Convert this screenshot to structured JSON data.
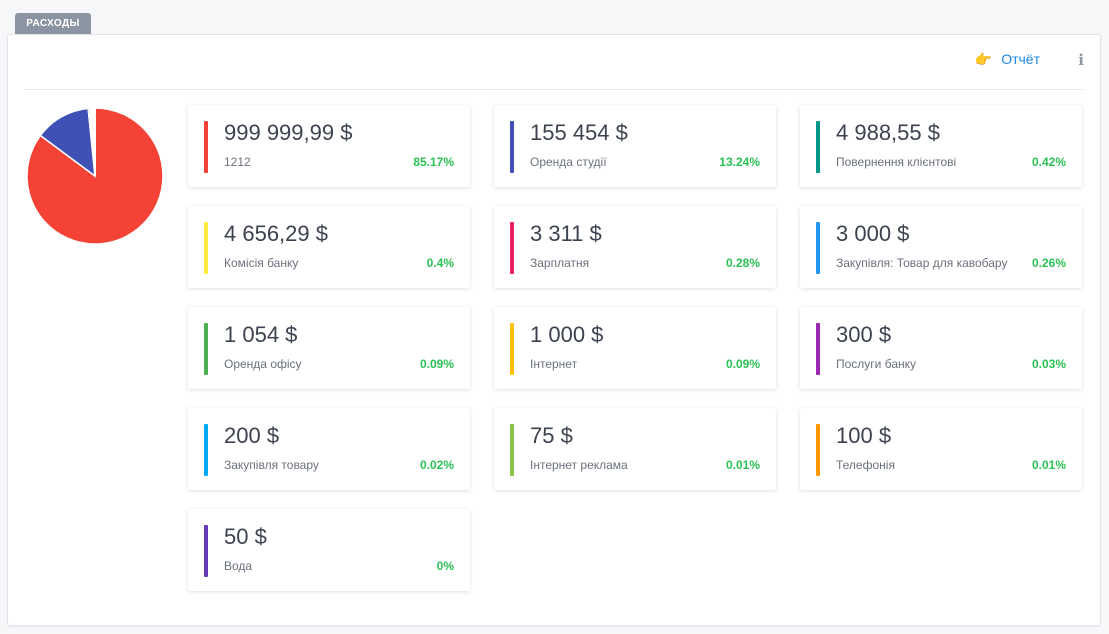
{
  "tab": {
    "label": "РАСХОДЫ"
  },
  "header": {
    "report_label": "Отчёт",
    "report_icon": "pointing-hand-icon",
    "info_icon": "info-icon"
  },
  "colors": {
    "accent": "#1e88e5",
    "positive": "#2bc155",
    "tab": "#8a94a2"
  },
  "chart_data": {
    "type": "pie",
    "slices": [
      {
        "label": "1212",
        "value": 85.17,
        "color": "#f44336"
      },
      {
        "label": "Оренда студії",
        "value": 13.24,
        "color": "#3f51b5"
      },
      {
        "label": "Повернення клієнтові",
        "value": 0.42,
        "color": "#009688"
      },
      {
        "label": "Комісія банку",
        "value": 0.4,
        "color": "#ffeb3b"
      },
      {
        "label": "Зарплатня",
        "value": 0.28,
        "color": "#e91e63"
      },
      {
        "label": "Закупівля: Товар для кавобару",
        "value": 0.26,
        "color": "#2196f3"
      },
      {
        "label": "Оренда офісу",
        "value": 0.09,
        "color": "#4caf50"
      },
      {
        "label": "Інтернет",
        "value": 0.09,
        "color": "#ffc107"
      },
      {
        "label": "Послуги банку",
        "value": 0.03,
        "color": "#9c27b0"
      },
      {
        "label": "Закупівля товару",
        "value": 0.02,
        "color": "#03a9f4"
      },
      {
        "label": "Інтернет реклама",
        "value": 0.01,
        "color": "#8bc34a"
      },
      {
        "label": "Телефонія",
        "value": 0.01,
        "color": "#ff9800"
      },
      {
        "label": "Вода",
        "value": 0,
        "color": "#673ab7"
      }
    ]
  },
  "cards": [
    {
      "amount": "999 999,99 $",
      "label": "1212",
      "percent": "85.17%",
      "color": "#f44336"
    },
    {
      "amount": "155 454 $",
      "label": "Оренда студії",
      "percent": "13.24%",
      "color": "#3f51b5"
    },
    {
      "amount": "4 988,55 $",
      "label": "Повернення клієнтові",
      "percent": "0.42%",
      "color": "#009688"
    },
    {
      "amount": "4 656,29 $",
      "label": "Комісія банку",
      "percent": "0.4%",
      "color": "#ffeb3b"
    },
    {
      "amount": "3 311 $",
      "label": "Зарплатня",
      "percent": "0.28%",
      "color": "#e91e63"
    },
    {
      "amount": "3 000 $",
      "label": "Закупівля: Товар для кавобару",
      "percent": "0.26%",
      "color": "#2196f3"
    },
    {
      "amount": "1 054 $",
      "label": "Оренда офісу",
      "percent": "0.09%",
      "color": "#4caf50"
    },
    {
      "amount": "1 000 $",
      "label": "Інтернет",
      "percent": "0.09%",
      "color": "#ffc107"
    },
    {
      "amount": "300 $",
      "label": "Послуги банку",
      "percent": "0.03%",
      "color": "#9c27b0"
    },
    {
      "amount": "200 $",
      "label": "Закупівля товару",
      "percent": "0.02%",
      "color": "#03a9f4"
    },
    {
      "amount": "75 $",
      "label": "Інтернет реклама",
      "percent": "0.01%",
      "color": "#8bc34a"
    },
    {
      "amount": "100 $",
      "label": "Телефонія",
      "percent": "0.01%",
      "color": "#ff9800"
    },
    {
      "amount": "50 $",
      "label": "Вода",
      "percent": "0%",
      "color": "#673ab7"
    }
  ]
}
